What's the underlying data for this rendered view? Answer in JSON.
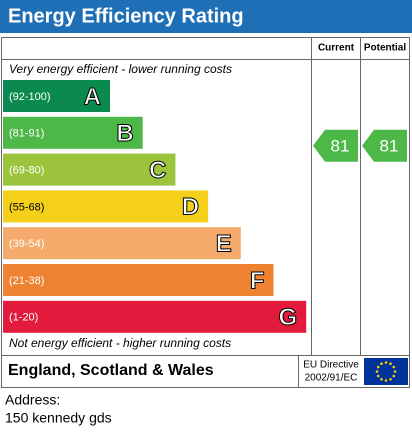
{
  "header": {
    "title": "Energy Efficiency Rating"
  },
  "columns": [
    "Current",
    "Potential"
  ],
  "top_note": "Very energy efficient - lower running costs",
  "bands": [
    {
      "range": "(92-100)",
      "letter": "A",
      "color": "#0b8a4f"
    },
    {
      "range": "(81-91)",
      "letter": "B",
      "color": "#4db848"
    },
    {
      "range": "(69-80)",
      "letter": "C",
      "color": "#9cc33c"
    },
    {
      "range": "(55-68)",
      "letter": "D",
      "color": "#f4d01b"
    },
    {
      "range": "(39-54)",
      "letter": "E",
      "color": "#f4ab6b"
    },
    {
      "range": "(21-38)",
      "letter": "F",
      "color": "#ee8231"
    },
    {
      "range": "(1-20)",
      "letter": "G",
      "color": "#e21b3d"
    }
  ],
  "ratings": {
    "current": {
      "value": 81,
      "color": "#4db848"
    },
    "potential": {
      "value": 81,
      "color": "#4db848"
    }
  },
  "bottom_note": "Not energy efficient - higher running costs",
  "footer": {
    "region": "England, Scotland & Wales",
    "directive": [
      "EU Directive",
      "2002/91/EC"
    ]
  },
  "address": {
    "label": "Address:",
    "text": "150 kennedy gds"
  }
}
